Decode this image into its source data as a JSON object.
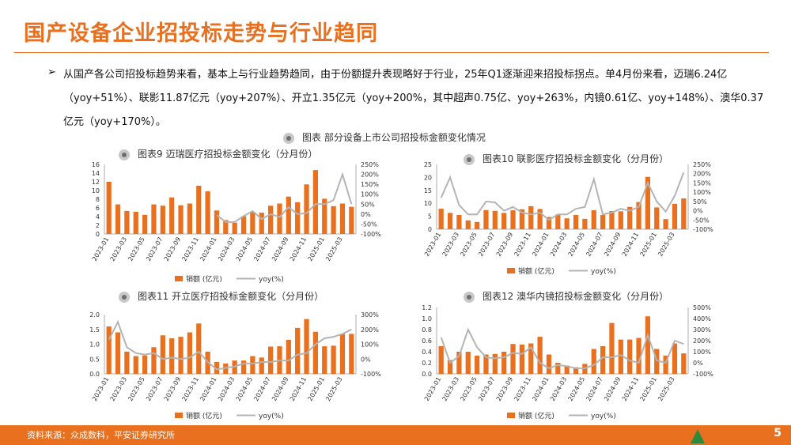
{
  "page": {
    "title": "国产设备企业招投标走势与行业趋同",
    "bullet": "➢",
    "paragraph": "从国产各公司招投标趋势来看，基本上与行业趋势趋同，由于份额提升表现略好于行业，25年Q1逐渐迎来招投标拐点。单4月份来看，迈瑞6.24亿（yoy+51%）、联影11.87亿元（yoy+207%）、开立1.35亿元（yoy+200%，其中超声0.75亿、yoy+263%，内镜0.61亿、yoy+148%）、澳华0.37亿元（yoy+170%）。",
    "main_figure_title": "图表  部分设备上市公司招投标金额变化情况",
    "source": "资料来源：众成数科，平安证券研究所",
    "page_number": "5",
    "colors": {
      "accent": "#e8701e",
      "bar": "#e8701e",
      "line": "#b4b4b4"
    }
  },
  "chart_data": [
    {
      "type": "bar",
      "title": "图表9  迈瑞医疗招投标金额变化（分月份）",
      "x": [
        "2023-01",
        "2023-02",
        "2023-03",
        "2023-04",
        "2023-05",
        "2023-06",
        "2023-07",
        "2023-08",
        "2023-09",
        "2023-10",
        "2023-11",
        "2023-12",
        "2024-01",
        "2024-02",
        "2024-03",
        "2024-04",
        "2024-05",
        "2024-06",
        "2024-07",
        "2024-08",
        "2024-09",
        "2024-10",
        "2024-11",
        "2024-12",
        "2025-01",
        "2025-02",
        "2025-03",
        "2025-04"
      ],
      "x_tick_labels": [
        "2023-01",
        "2023-03",
        "2023-05",
        "2023-07",
        "2023-09",
        "2023-11",
        "2024-01",
        "2024-03",
        "2024-05",
        "2024-07",
        "2024-09",
        "2024-11",
        "2025-01",
        "2025-03"
      ],
      "series": [
        {
          "name": "销额 (亿元)",
          "type": "bar",
          "axis": "left",
          "values": [
            12,
            6.8,
            5.3,
            5.1,
            4.4,
            6.8,
            6.5,
            8.4,
            6.6,
            7.0,
            11.1,
            9.8,
            5.4,
            3.2,
            2.6,
            4.1,
            5.1,
            4.9,
            6.5,
            7.0,
            8.6,
            7.3,
            11.4,
            14.7,
            8.1,
            6.4,
            7.0,
            6.24
          ]
        },
        {
          "name": "yoy(%)",
          "type": "line",
          "axis": "right",
          "values": [
            null,
            null,
            null,
            null,
            null,
            null,
            null,
            null,
            null,
            null,
            null,
            null,
            -5,
            -40,
            -40,
            -10,
            15,
            -25,
            0,
            -15,
            35,
            0,
            5,
            50,
            50,
            70,
            200,
            51
          ]
        }
      ],
      "yleft": {
        "min": 0,
        "max": 16,
        "ticks": [
          "0",
          "2",
          "4",
          "6",
          "8",
          "10",
          "12",
          "14",
          "16"
        ]
      },
      "yright": {
        "min": -100,
        "max": 250,
        "ticks": [
          "-100%",
          "-50%",
          "0%",
          "50%",
          "100%",
          "150%",
          "200%",
          "250%"
        ]
      },
      "legend": [
        "销额 (亿元)",
        "yoy(%)"
      ]
    },
    {
      "type": "bar",
      "title": "图表10  联影医疗招投标金额变化（分月份）",
      "x": [
        "2023-01",
        "2023-02",
        "2023-03",
        "2023-04",
        "2023-05",
        "2023-06",
        "2023-07",
        "2023-08",
        "2023-09",
        "2023-10",
        "2023-11",
        "2023-12",
        "2024-01",
        "2024-02",
        "2024-03",
        "2024-04",
        "2024-05",
        "2024-06",
        "2024-07",
        "2024-08",
        "2024-09",
        "2024-10",
        "2024-11",
        "2024-12",
        "2025-01",
        "2025-02",
        "2025-03",
        "2025-04"
      ],
      "x_tick_labels": [
        "2023-01",
        "2023-03",
        "2023-05",
        "2023-07",
        "2023-09",
        "2023-11",
        "2024-01",
        "2024-03",
        "2024-05",
        "2024-07",
        "2024-09",
        "2024-11",
        "2025-01",
        "2025-03"
      ],
      "series": [
        {
          "name": "销额 (亿元)",
          "type": "bar",
          "axis": "left",
          "values": [
            7.9,
            6.3,
            5.5,
            3.4,
            2.8,
            7.4,
            7.1,
            6.3,
            7.3,
            7.7,
            8.9,
            7.8,
            4.7,
            5.7,
            4.2,
            5.5,
            4.0,
            7.3,
            5.5,
            7.0,
            6.9,
            8.6,
            10.5,
            20.2,
            8.4,
            3.9,
            9.8,
            11.87
          ]
        },
        {
          "name": "yoy(%)",
          "type": "line",
          "axis": "right",
          "values": [
            70,
            180,
            30,
            -20,
            -20,
            50,
            45,
            0,
            20,
            -10,
            -20,
            -10,
            -50,
            -20,
            -20,
            10,
            20,
            170,
            -20,
            -10,
            10,
            0,
            20,
            150,
            50,
            -5,
            80,
            207
          ]
        }
      ],
      "yleft": {
        "min": 0,
        "max": 25,
        "ticks": [
          "0",
          "5",
          "10",
          "15",
          "20",
          "25"
        ]
      },
      "yright": {
        "min": -100,
        "max": 250,
        "ticks": [
          "-100%",
          "-50%",
          "0%",
          "50%",
          "100%",
          "150%",
          "200%",
          "250%"
        ]
      },
      "legend": [
        "销额 (亿元)",
        "yoy(%)"
      ]
    },
    {
      "type": "bar",
      "title": "图表11  开立医疗招投标金额变化（分月份）",
      "x": [
        "2023-01",
        "2023-02",
        "2023-03",
        "2023-04",
        "2023-05",
        "2023-06",
        "2023-07",
        "2023-08",
        "2023-09",
        "2023-10",
        "2023-11",
        "2023-12",
        "2024-01",
        "2024-02",
        "2024-03",
        "2024-04",
        "2024-05",
        "2024-06",
        "2024-07",
        "2024-08",
        "2024-09",
        "2024-10",
        "2024-11",
        "2024-12",
        "2025-01",
        "2025-02",
        "2025-03",
        "2025-04"
      ],
      "x_tick_labels": [
        "2023-01",
        "2023-03",
        "2023-05",
        "2023-07",
        "2023-09",
        "2023-11",
        "2024-01",
        "2024-03",
        "2024-05",
        "2024-07",
        "2024-09",
        "2024-11",
        "2025-01",
        "2025-03"
      ],
      "series": [
        {
          "name": "销额 (亿元)",
          "type": "bar",
          "axis": "left",
          "values": [
            1.6,
            1.4,
            0.75,
            0.6,
            0.62,
            0.9,
            1.3,
            1.2,
            1.25,
            1.4,
            1.7,
            0.75,
            0.4,
            0.35,
            0.45,
            0.45,
            0.6,
            0.55,
            0.92,
            0.93,
            1.15,
            1.55,
            1.85,
            1.42,
            0.93,
            0.95,
            1.35,
            1.35
          ]
        },
        {
          "name": "yoy(%)",
          "type": "line",
          "axis": "right",
          "values": [
            130,
            250,
            80,
            40,
            30,
            40,
            0,
            10,
            0,
            10,
            50,
            -20,
            -70,
            -60,
            -50,
            -30,
            -30,
            -20,
            -20,
            -10,
            -10,
            30,
            40,
            100,
            140,
            150,
            170,
            200
          ]
        }
      ],
      "yleft": {
        "min": 0,
        "max": 2.0,
        "ticks": [
          "0.0",
          "0.5",
          "1.0",
          "1.5",
          "2.0"
        ]
      },
      "yright": {
        "min": -100,
        "max": 300,
        "ticks": [
          "-100%",
          "0%",
          "100%",
          "200%",
          "300%"
        ]
      },
      "legend": [
        "销额 (亿元)",
        "yoy(%)"
      ]
    },
    {
      "type": "bar",
      "title": "图表12  澳华内镜招投标金额变化（分月份）",
      "x": [
        "2023-01",
        "2023-02",
        "2023-03",
        "2023-04",
        "2023-05",
        "2023-06",
        "2023-07",
        "2023-08",
        "2023-09",
        "2023-10",
        "2023-11",
        "2023-12",
        "2024-01",
        "2024-02",
        "2024-03",
        "2024-04",
        "2024-05",
        "2024-06",
        "2024-07",
        "2024-08",
        "2024-09",
        "2024-10",
        "2024-11",
        "2024-12",
        "2025-01",
        "2025-02",
        "2025-03",
        "2025-04"
      ],
      "x_tick_labels": [
        "2023-01",
        "2023-03",
        "2023-05",
        "2023-07",
        "2023-09",
        "2023-11",
        "2024-01",
        "2024-03",
        "2024-05",
        "2024-07",
        "2024-09",
        "2024-11",
        "2025-01",
        "2025-03"
      ],
      "series": [
        {
          "name": "销额 (亿元)",
          "type": "bar",
          "axis": "left",
          "values": [
            0.5,
            0.25,
            0.4,
            0.4,
            0.33,
            0.35,
            0.36,
            0.4,
            0.54,
            0.53,
            0.55,
            0.67,
            0.35,
            0.2,
            0.15,
            0.12,
            0.18,
            0.45,
            0.5,
            0.92,
            0.62,
            0.62,
            0.65,
            1.04,
            0.45,
            0.33,
            0.55,
            0.37
          ]
        },
        {
          "name": "yoy(%)",
          "type": "line",
          "axis": "right",
          "values": [
            230,
            0,
            60,
            300,
            140,
            50,
            40,
            50,
            90,
            80,
            140,
            0,
            -50,
            -20,
            -30,
            -50,
            -50,
            -20,
            50,
            50,
            70,
            20,
            0,
            250,
            20,
            0,
            200,
            170
          ]
        }
      ],
      "yleft": {
        "min": 0,
        "max": 1.2,
        "ticks": [
          "0.0",
          "0.2",
          "0.4",
          "0.6",
          "0.8",
          "1.0",
          "1.2"
        ]
      },
      "yright": {
        "min": -100,
        "max": 500,
        "ticks": [
          "-100%",
          "0%",
          "100%",
          "200%",
          "300%",
          "400%",
          "500%"
        ]
      },
      "legend": [
        "销额 (亿元)",
        "yoy(%)"
      ]
    }
  ]
}
